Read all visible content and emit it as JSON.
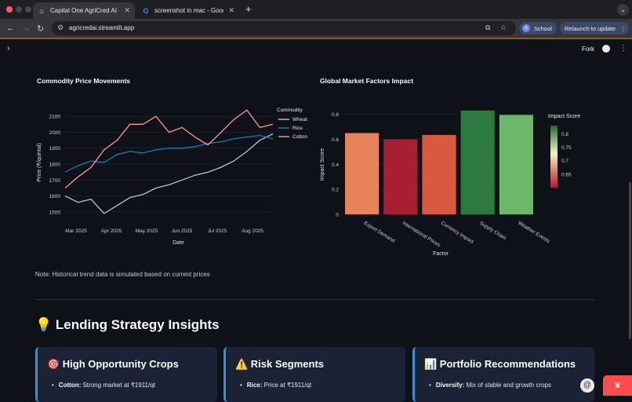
{
  "browser": {
    "tabs": [
      {
        "title": "Capital One AgriCred AI - Agr",
        "favicon": "home-icon"
      },
      {
        "title": "screenshot in mac - Google S",
        "favicon": "google-icon"
      }
    ],
    "url": "agricredai.streamlit.app",
    "profile_initial": "A",
    "profile_label": "School",
    "relaunch_label": "Relaunch to update"
  },
  "app_header": {
    "fork_label": "Fork"
  },
  "left_chart_title": "Commodity Price Movements",
  "right_chart_title": "Global Market Factors Impact",
  "chart_data": [
    {
      "type": "line",
      "title": "Commodity Price Movements",
      "xlabel": "Date",
      "ylabel": "Price (₹/quintal)",
      "x_ticks": [
        "Mar 2025",
        "Apr 2025",
        "May 2025",
        "Jun 2025",
        "Jul 2025",
        "Aug 2025"
      ],
      "y_ticks": [
        1500,
        1600,
        1700,
        1800,
        1900,
        2000,
        2100
      ],
      "ylim": [
        1460,
        2160
      ],
      "legend_title": "Commodity",
      "legend_position": "top-right",
      "series": [
        {
          "name": "Wheat",
          "color": "#aec7e8",
          "values": [
            1600,
            1560,
            1580,
            1490,
            1540,
            1590,
            1610,
            1650,
            1670,
            1700,
            1730,
            1750,
            1780,
            1820,
            1880,
            1950,
            1990
          ]
        },
        {
          "name": "Rice",
          "color": "#1f77b4",
          "values": [
            1750,
            1790,
            1820,
            1810,
            1860,
            1880,
            1870,
            1890,
            1900,
            1900,
            1910,
            1930,
            1940,
            1960,
            1970,
            1980,
            1960
          ]
        },
        {
          "name": "Cotton",
          "color": "#ff9896",
          "values": [
            1650,
            1720,
            1780,
            1890,
            1950,
            2050,
            2050,
            2100,
            2000,
            2030,
            1970,
            1920,
            2000,
            2080,
            2140,
            2030,
            2050
          ]
        }
      ]
    },
    {
      "type": "bar",
      "title": "Global Market Factors Impact",
      "xlabel": "Factor",
      "ylabel": "Impact Score",
      "categories": [
        "Export Demand",
        "International Prices",
        "Currency Impact",
        "Supply Chain",
        "Weather Events"
      ],
      "values": [
        0.65,
        0.6,
        0.635,
        0.83,
        0.795
      ],
      "bar_colors": [
        "#e8825a",
        "#a81e32",
        "#d85840",
        "#2d7a40",
        "#6cb868"
      ],
      "ylim": [
        0,
        0.86
      ],
      "y_ticks": [
        0,
        0.2,
        0.4,
        0.6,
        0.8
      ],
      "colorbar_title": "Impact Score",
      "colorbar_ticks": [
        0.65,
        0.7,
        0.75,
        0.8
      ]
    }
  ],
  "note": "Note: Historical trend data is simulated based on current prices",
  "section_title": "💡 Lending Strategy Insights",
  "cards": [
    {
      "title": "🎯 High Opportunity Crops",
      "item_bold": "Cotton:",
      "item_text": " Strong market at ₹1911/qt"
    },
    {
      "title": "⚠️ Risk Segments",
      "item_bold": "Rice:",
      "item_text": " Price at ₹1911/qt"
    },
    {
      "title": "📊 Portfolio Recommendations",
      "item_bold": "Diversify:",
      "item_text": " Mix of stable and growth crops"
    }
  ],
  "colors": {
    "background": "#0e1117",
    "card": "#1a2233",
    "card_accent": "#3e8ed0"
  }
}
